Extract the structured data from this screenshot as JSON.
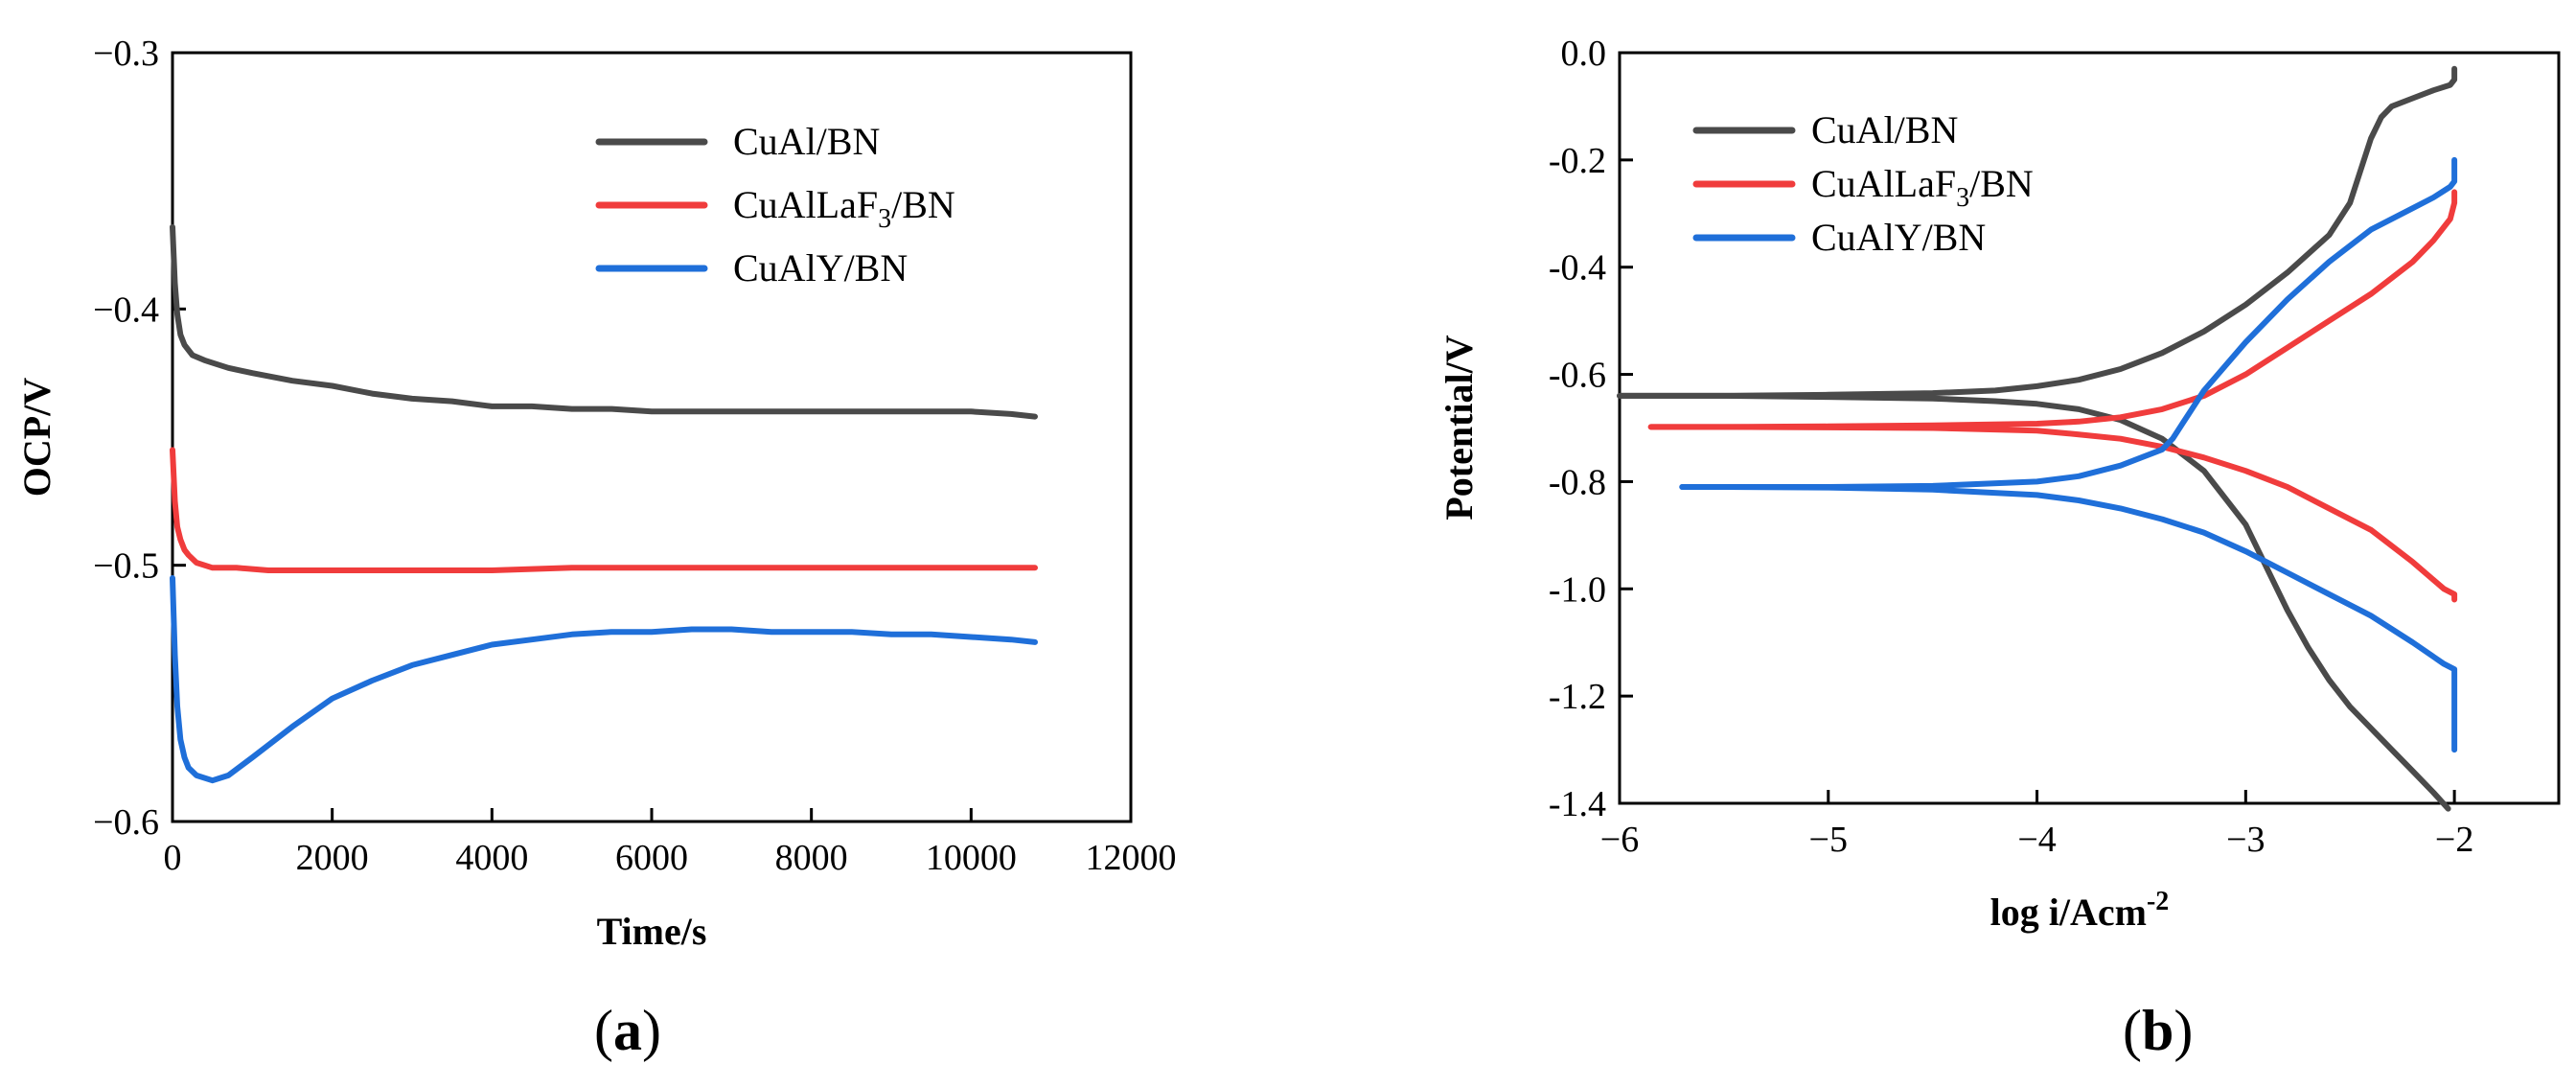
{
  "chart_data": [
    {
      "type": "line",
      "panel_label": "a",
      "title": "",
      "xlabel": "Time/s",
      "ylabel": "OCP/V",
      "xlim": [
        0,
        12000
      ],
      "ylim": [
        -0.6,
        -0.3
      ],
      "xticks": [
        "0",
        "2000",
        "4000",
        "6000",
        "8000",
        "10000",
        "12000"
      ],
      "yticks": [
        "−0.3",
        "−0.4",
        "−0.5",
        "−0.6"
      ],
      "legend_position": "top-right",
      "series": [
        {
          "name": "CuAl/BN",
          "legend": {
            "prefix": "CuAl/BN",
            "sub": "",
            "suffix": ""
          },
          "color": "#4a4a4a",
          "x": [
            0,
            30,
            60,
            100,
            150,
            250,
            400,
            700,
            1000,
            1500,
            2000,
            2500,
            3000,
            3500,
            4000,
            4500,
            5000,
            5500,
            6000,
            6500,
            7000,
            7500,
            8000,
            8500,
            9000,
            9500,
            10000,
            10500,
            10800
          ],
          "y": [
            -0.368,
            -0.39,
            -0.402,
            -0.41,
            -0.414,
            -0.418,
            -0.42,
            -0.423,
            -0.425,
            -0.428,
            -0.43,
            -0.433,
            -0.435,
            -0.436,
            -0.438,
            -0.438,
            -0.439,
            -0.439,
            -0.44,
            -0.44,
            -0.44,
            -0.44,
            -0.44,
            -0.44,
            -0.44,
            -0.44,
            -0.44,
            -0.441,
            -0.442
          ]
        },
        {
          "name": "CuAlLaF3/BN",
          "legend": {
            "prefix": "CuAlLaF",
            "sub": "3",
            "suffix": "/BN"
          },
          "color": "#f03c3c",
          "x": [
            0,
            30,
            60,
            100,
            150,
            200,
            300,
            500,
            800,
            1200,
            2000,
            3000,
            4000,
            5000,
            6000,
            7000,
            8000,
            9000,
            10000,
            10800
          ],
          "y": [
            -0.455,
            -0.475,
            -0.485,
            -0.49,
            -0.494,
            -0.496,
            -0.499,
            -0.501,
            -0.501,
            -0.502,
            -0.502,
            -0.502,
            -0.502,
            -0.501,
            -0.501,
            -0.501,
            -0.501,
            -0.501,
            -0.501,
            -0.501
          ]
        },
        {
          "name": "CuAlY/BN",
          "legend": {
            "prefix": "CuAlY/BN",
            "sub": "",
            "suffix": ""
          },
          "color": "#1f6fd9",
          "x": [
            0,
            30,
            60,
            100,
            150,
            200,
            300,
            500,
            700,
            1000,
            1500,
            2000,
            2500,
            3000,
            3500,
            4000,
            4500,
            5000,
            5500,
            6000,
            6500,
            7000,
            7500,
            8000,
            8500,
            9000,
            9500,
            10000,
            10500,
            10800
          ],
          "y": [
            -0.505,
            -0.535,
            -0.555,
            -0.568,
            -0.575,
            -0.579,
            -0.582,
            -0.584,
            -0.582,
            -0.575,
            -0.563,
            -0.552,
            -0.545,
            -0.539,
            -0.535,
            -0.531,
            -0.529,
            -0.527,
            -0.526,
            -0.526,
            -0.525,
            -0.525,
            -0.526,
            -0.526,
            -0.526,
            -0.527,
            -0.527,
            -0.528,
            -0.529,
            -0.53
          ]
        }
      ]
    },
    {
      "type": "line",
      "panel_label": "b",
      "title": "",
      "xlabel": "log i/Acm",
      "xlabel_sup": "-2",
      "ylabel": "Potential/V",
      "xlim": [
        -6,
        -1.5
      ],
      "ylim": [
        -1.4,
        0.0
      ],
      "xticks": [
        "−6",
        "−5",
        "−4",
        "−3",
        "−2"
      ],
      "yticks": [
        "0.0",
        "-0.2",
        "-0.4",
        "-0.6",
        "-0.8",
        "-1.0",
        "-1.2",
        "-1.4"
      ],
      "legend_position": "top-left",
      "series": [
        {
          "name": "CuAl/BN",
          "legend": {
            "prefix": "CuAl/BN",
            "sub": "",
            "suffix": ""
          },
          "color": "#4a4a4a",
          "anodic": {
            "x": [
              -6.0,
              -5.5,
              -5.0,
              -4.5,
              -4.2,
              -4.0,
              -3.8,
              -3.6,
              -3.4,
              -3.2,
              -3.0,
              -2.8,
              -2.6,
              -2.5,
              -2.45,
              -2.4,
              -2.35,
              -2.3,
              -2.2,
              -2.1,
              -2.02,
              -2.0,
              -2.0
            ],
            "y": [
              -0.64,
              -0.64,
              -0.638,
              -0.635,
              -0.63,
              -0.622,
              -0.61,
              -0.59,
              -0.56,
              -0.52,
              -0.47,
              -0.41,
              -0.34,
              -0.28,
              -0.22,
              -0.16,
              -0.12,
              -0.1,
              -0.085,
              -0.07,
              -0.06,
              -0.05,
              -0.03
            ]
          },
          "cathodic": {
            "x": [
              -6.0,
              -5.5,
              -5.0,
              -4.5,
              -4.2,
              -4.0,
              -3.8,
              -3.6,
              -3.4,
              -3.2,
              -3.0,
              -2.9,
              -2.8,
              -2.7,
              -2.6,
              -2.5,
              -2.4,
              -2.3,
              -2.2,
              -2.1,
              -2.03
            ],
            "y": [
              -0.64,
              -0.64,
              -0.642,
              -0.645,
              -0.65,
              -0.655,
              -0.665,
              -0.685,
              -0.72,
              -0.78,
              -0.88,
              -0.96,
              -1.04,
              -1.11,
              -1.17,
              -1.22,
              -1.26,
              -1.3,
              -1.34,
              -1.38,
              -1.41
            ]
          }
        },
        {
          "name": "CuAlLaF3/BN",
          "legend": {
            "prefix": "CuAlLaF",
            "sub": "3",
            "suffix": "/BN"
          },
          "color": "#f03c3c",
          "anodic": {
            "x": [
              -5.85,
              -5.5,
              -5.0,
              -4.5,
              -4.0,
              -3.8,
              -3.6,
              -3.4,
              -3.2,
              -3.0,
              -2.8,
              -2.6,
              -2.4,
              -2.2,
              -2.1,
              -2.02,
              -2.0,
              -2.0
            ],
            "y": [
              -0.698,
              -0.698,
              -0.697,
              -0.695,
              -0.692,
              -0.688,
              -0.68,
              -0.665,
              -0.64,
              -0.6,
              -0.55,
              -0.5,
              -0.45,
              -0.39,
              -0.35,
              -0.31,
              -0.28,
              -0.26
            ]
          },
          "cathodic": {
            "x": [
              -5.85,
              -5.5,
              -5.0,
              -4.5,
              -4.0,
              -3.8,
              -3.6,
              -3.4,
              -3.2,
              -3.0,
              -2.8,
              -2.6,
              -2.4,
              -2.2,
              -2.05,
              -2.0,
              -2.0
            ],
            "y": [
              -0.698,
              -0.698,
              -0.699,
              -0.7,
              -0.705,
              -0.712,
              -0.72,
              -0.735,
              -0.755,
              -0.78,
              -0.81,
              -0.85,
              -0.89,
              -0.95,
              -1.0,
              -1.01,
              -1.02
            ]
          }
        },
        {
          "name": "CuAlY/BN",
          "legend": {
            "prefix": "CuAlY/BN",
            "sub": "",
            "suffix": ""
          },
          "color": "#1f6fd9",
          "anodic": {
            "x": [
              -5.7,
              -5.5,
              -5.0,
              -4.5,
              -4.0,
              -3.8,
              -3.6,
              -3.5,
              -3.4,
              -3.35,
              -3.3,
              -3.2,
              -3.0,
              -2.8,
              -2.6,
              -2.4,
              -2.2,
              -2.1,
              -2.02,
              -2.0,
              -2.0
            ],
            "y": [
              -0.81,
              -0.81,
              -0.81,
              -0.808,
              -0.8,
              -0.79,
              -0.77,
              -0.755,
              -0.74,
              -0.72,
              -0.69,
              -0.63,
              -0.54,
              -0.46,
              -0.39,
              -0.33,
              -0.29,
              -0.27,
              -0.25,
              -0.24,
              -0.2
            ]
          },
          "cathodic": {
            "x": [
              -5.7,
              -5.5,
              -5.0,
              -4.5,
              -4.0,
              -3.8,
              -3.6,
              -3.4,
              -3.2,
              -3.0,
              -2.8,
              -2.6,
              -2.4,
              -2.2,
              -2.05,
              -2.0,
              -2.0
            ],
            "y": [
              -0.81,
              -0.81,
              -0.811,
              -0.815,
              -0.825,
              -0.835,
              -0.85,
              -0.87,
              -0.895,
              -0.93,
              -0.97,
              -1.01,
              -1.05,
              -1.1,
              -1.14,
              -1.15,
              -1.3
            ]
          }
        }
      ]
    }
  ]
}
